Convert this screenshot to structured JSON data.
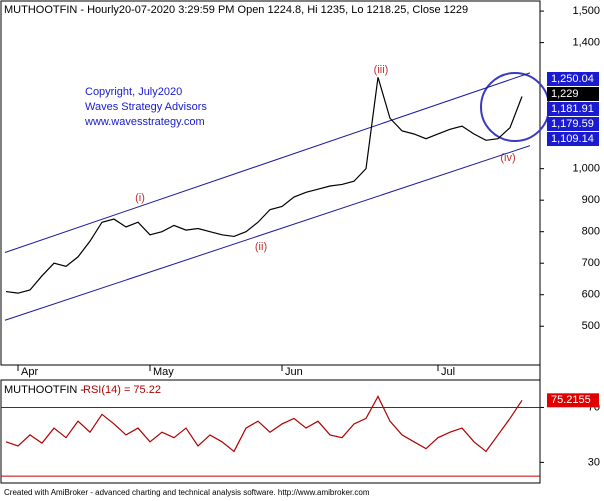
{
  "chart_data": [
    {
      "type": "line",
      "title": "MUTHOOTFIN - Hourly20-07-2020 3:29:59 PM Open 1224.8, Hi 1235, Lo 1218.25, Close 1229",
      "notes": [
        "Copyright, July2020",
        "Waves Strategy Advisors",
        "www.wavesstrategy.com"
      ],
      "wave_labels": [
        "(i)",
        "(ii)",
        "(iii)",
        "(iv)"
      ],
      "categories": [
        null,
        "Apr",
        null,
        null,
        null,
        null,
        null,
        null,
        null,
        null,
        null,
        null,
        "May",
        null,
        null,
        null,
        null,
        null,
        null,
        null,
        null,
        null,
        null,
        "Jun",
        null,
        null,
        null,
        null,
        null,
        null,
        null,
        null,
        null,
        null,
        null,
        null,
        "Jul",
        null,
        null,
        null,
        null,
        null,
        null,
        null
      ],
      "series": [
        {
          "name": "MUTHOOTFIN",
          "color": "#000000",
          "values": [
            610,
            605,
            615,
            660,
            700,
            690,
            720,
            770,
            830,
            840,
            815,
            830,
            790,
            800,
            820,
            805,
            810,
            800,
            790,
            785,
            800,
            830,
            870,
            880,
            910,
            925,
            935,
            945,
            950,
            960,
            1000,
            1290,
            1160,
            1120,
            1110,
            1095,
            1110,
            1125,
            1135,
            1110,
            1090,
            1095,
            1130,
            1229
          ]
        }
      ],
      "channel": {
        "color": "#1a1aa0",
        "upper": [
          734,
          1304
        ],
        "lower": [
          519,
          1073
        ]
      },
      "price_labels": [
        {
          "value": 1250.04,
          "label": "1,250.04",
          "color": "#1a1ad0"
        },
        {
          "value": 1229,
          "label": "1,229",
          "color": "#000000"
        },
        {
          "value": 1181.91,
          "label": "1,181.91",
          "color": "#1a1ad0"
        },
        {
          "value": 1179.59,
          "label": "1,179.59",
          "color": "#1a1ad0"
        },
        {
          "value": 1109.14,
          "label": "1,109.14",
          "color": "#1a1ad0"
        }
      ],
      "ylim": [
        377,
        1532
      ],
      "yticks": [
        {
          "value": 1500,
          "label": "1,500"
        },
        {
          "value": 1400,
          "label": "1,400"
        },
        {
          "value": 1000,
          "label": "1,000"
        },
        900,
        800,
        700,
        600,
        500
      ]
    },
    {
      "type": "line",
      "title": "MUTHOOTFIN -",
      "subtitle": "RSI(14) = 75.22",
      "series": [
        {
          "name": "RSI(14)",
          "color": "#b00000",
          "values": [
            45,
            42,
            50,
            44,
            55,
            48,
            60,
            52,
            65,
            58,
            50,
            55,
            45,
            52,
            48,
            55,
            42,
            50,
            45,
            38,
            55,
            60,
            52,
            58,
            62,
            55,
            60,
            50,
            48,
            58,
            62,
            78,
            60,
            50,
            45,
            40,
            48,
            52,
            55,
            45,
            38,
            50,
            62,
            75.2155
          ]
        }
      ],
      "levels": [
        70,
        20
      ],
      "ylim": [
        15,
        90
      ],
      "yticks": [
        30,
        70
      ]
    }
  ],
  "footer": "Created with AmiBroker - advanced charting and technical analysis software. http://www.amibroker.com"
}
